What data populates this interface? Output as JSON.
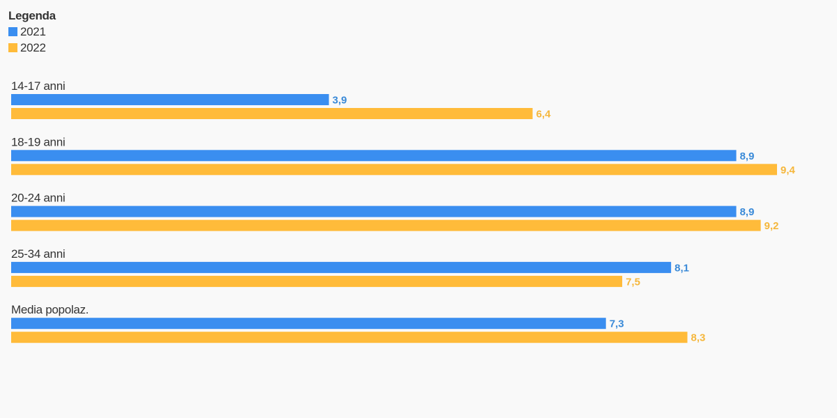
{
  "legend": {
    "title": "Legenda",
    "items": [
      {
        "label": "2021",
        "color": "#3a8ef0"
      },
      {
        "label": "2022",
        "color": "#ffbb3a"
      }
    ]
  },
  "chart_data": {
    "type": "bar",
    "orientation": "horizontal",
    "categories": [
      "14-17 anni",
      "18-19 anni",
      "20-24 anni",
      "25-34 anni",
      "Media popolaz."
    ],
    "series": [
      {
        "name": "2021",
        "values": [
          3.9,
          8.9,
          8.9,
          8.1,
          7.3
        ],
        "labels": [
          "3,9",
          "8,9",
          "8,9",
          "8,1",
          "7,3"
        ],
        "color": "#3a8ef0",
        "label_color": "#3a8ad8"
      },
      {
        "name": "2022",
        "values": [
          6.4,
          9.4,
          9.2,
          7.5,
          8.3
        ],
        "labels": [
          "6,4",
          "9,4",
          "9,2",
          "7,5",
          "8,3"
        ],
        "color": "#ffbb3a",
        "label_color": "#f5b73c"
      }
    ],
    "xlim": [
      0,
      9.4
    ],
    "grid": false,
    "legend_position": "top-left"
  }
}
